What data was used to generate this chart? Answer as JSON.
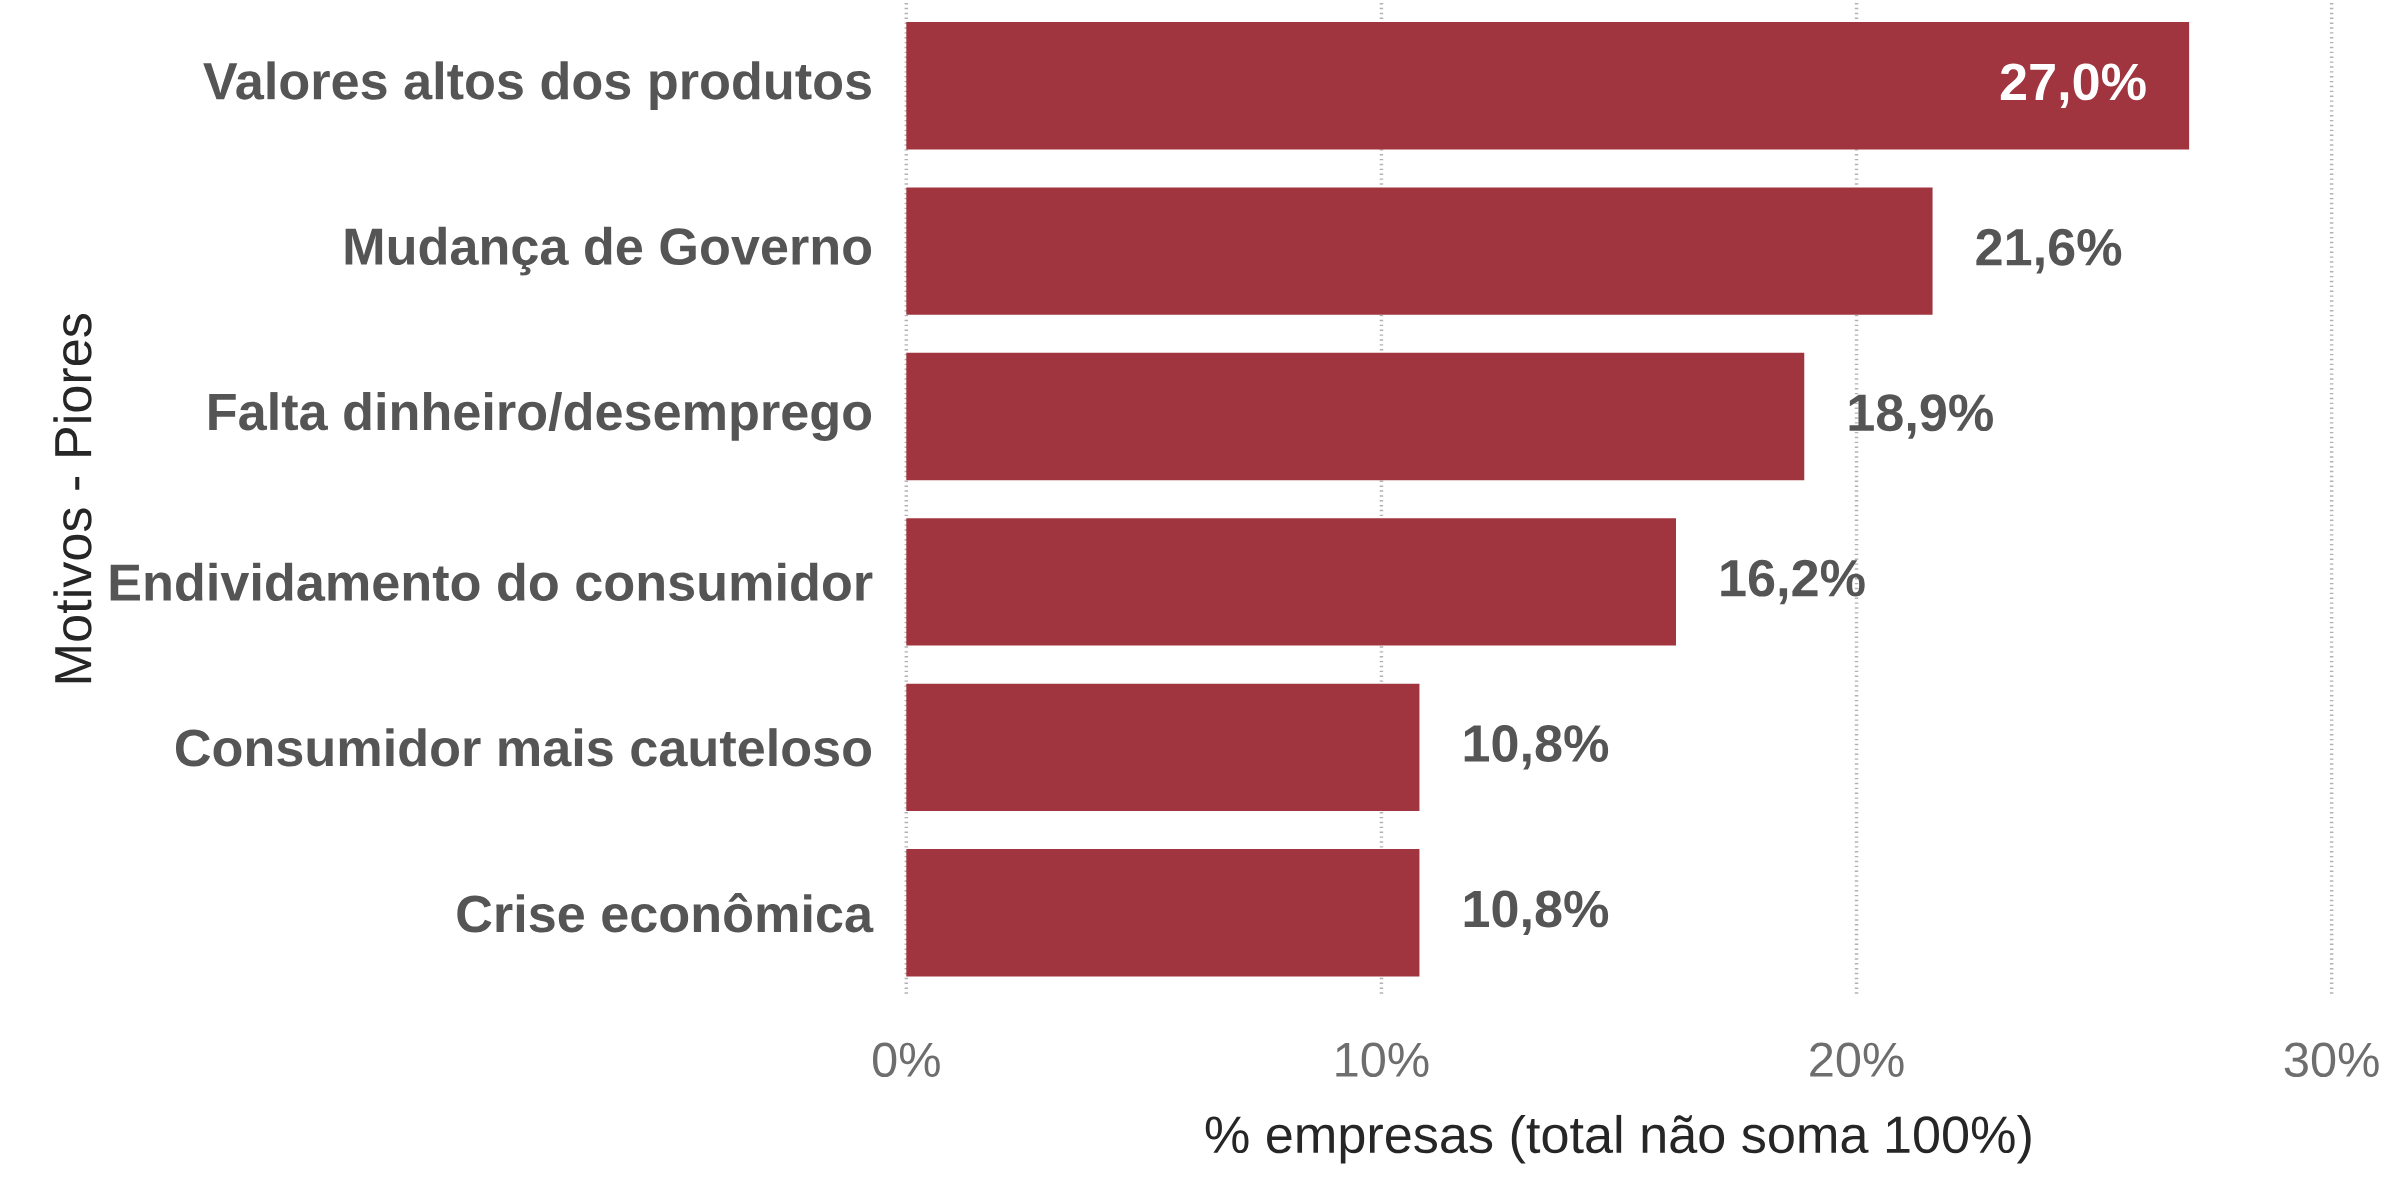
{
  "chart_data": {
    "type": "bar",
    "orientation": "horizontal",
    "ylabel": "Motivos - Piores",
    "xlabel": "% empresas (total não soma 100%)",
    "categories": [
      "Valores altos dos produtos",
      "Mudança de Governo",
      "Falta dinheiro/desemprego",
      "Endividamento do consumidor",
      "Consumidor mais cauteloso",
      "Crise econômica"
    ],
    "values": [
      27.0,
      21.6,
      18.9,
      16.2,
      10.8,
      10.8
    ],
    "value_labels": [
      "27,0%",
      "21,6%",
      "18,9%",
      "16,2%",
      "10,8%",
      "10,8%"
    ],
    "color": "#a0343f",
    "xlim": [
      0,
      30
    ],
    "xticks": [
      {
        "value": 0,
        "label": "0%"
      },
      {
        "value": 10,
        "label": "10%"
      },
      {
        "value": 20,
        "label": "20%"
      },
      {
        "value": 30,
        "label": "30%"
      }
    ],
    "grid": "x"
  }
}
